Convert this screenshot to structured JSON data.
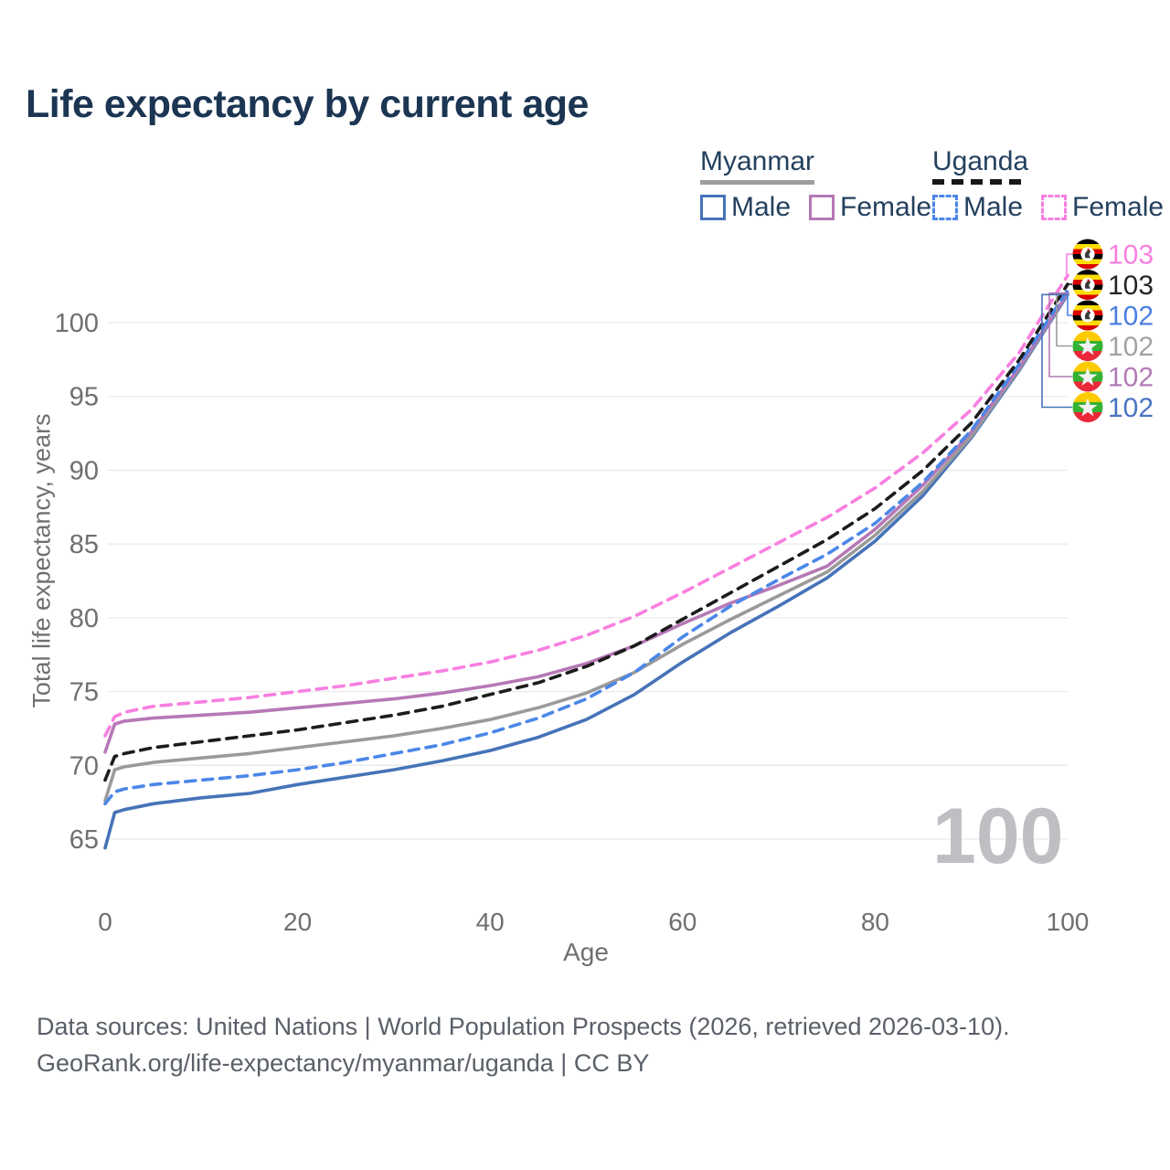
{
  "title": "Life expectancy by current age",
  "legend": {
    "groups": [
      {
        "country": "Myanmar",
        "underline": "solid-gray",
        "items": [
          {
            "label": "Male",
            "color": "#4673b8",
            "dashed": false
          },
          {
            "label": "Female",
            "color": "#b678b6",
            "dashed": false
          }
        ]
      },
      {
        "country": "Uganda",
        "underline": "dashed-black",
        "items": [
          {
            "label": "Male",
            "color": "#4b87e8",
            "dashed": true
          },
          {
            "label": "Female",
            "color": "#f87fe0",
            "dashed": true
          }
        ]
      }
    ]
  },
  "chart_data": {
    "type": "line",
    "title": "Life expectancy by current age",
    "xlabel": "Age",
    "ylabel": "Total life expectancy, years",
    "xlim": [
      0,
      100
    ],
    "ylim": [
      63.5,
      104.5
    ],
    "xticks": [
      0,
      20,
      40,
      60,
      80,
      100
    ],
    "yticks": [
      65,
      70,
      75,
      80,
      85,
      90,
      95,
      100
    ],
    "grid": "horizontal",
    "legend_position": "top-right",
    "hover_age_watermark": "100",
    "x": [
      0,
      1,
      2,
      5,
      10,
      15,
      20,
      25,
      30,
      35,
      40,
      45,
      50,
      55,
      60,
      65,
      70,
      75,
      80,
      85,
      90,
      95,
      100
    ],
    "series": [
      {
        "id": "mm-male",
        "name": "Myanmar Male",
        "country": "Myanmar",
        "sex": "Male",
        "color": "#4673b8",
        "dashed": false,
        "values": [
          64.4,
          66.8,
          67.0,
          67.4,
          67.8,
          68.1,
          68.7,
          69.2,
          69.7,
          70.3,
          71.0,
          71.9,
          73.1,
          74.8,
          77.0,
          79.0,
          80.8,
          82.7,
          85.2,
          88.3,
          92.2,
          96.8,
          101.9
        ]
      },
      {
        "id": "mm-both",
        "name": "Myanmar Both sexes",
        "country": "Myanmar",
        "sex": "Both",
        "color": "#9a9a9a",
        "dashed": false,
        "values": [
          67.6,
          69.7,
          69.9,
          70.2,
          70.5,
          70.8,
          71.2,
          71.6,
          72.0,
          72.5,
          73.1,
          73.9,
          74.9,
          76.3,
          78.2,
          79.9,
          81.5,
          83.1,
          85.6,
          88.6,
          92.3,
          96.9,
          102.0
        ]
      },
      {
        "id": "mm-female",
        "name": "Myanmar Female",
        "country": "Myanmar",
        "sex": "Female",
        "color": "#b678b6",
        "dashed": false,
        "values": [
          70.9,
          72.8,
          73.0,
          73.2,
          73.4,
          73.6,
          73.9,
          74.2,
          74.5,
          74.9,
          75.4,
          76.0,
          76.9,
          78.1,
          79.6,
          81.0,
          82.2,
          83.5,
          86.0,
          89.0,
          92.6,
          97.0,
          102.0
        ]
      },
      {
        "id": "ug-male",
        "name": "Uganda Male",
        "country": "Uganda",
        "sex": "Male",
        "color": "#4b87e8",
        "dashed": true,
        "values": [
          67.4,
          68.2,
          68.4,
          68.7,
          69.0,
          69.3,
          69.7,
          70.2,
          70.8,
          71.4,
          72.2,
          73.2,
          74.5,
          76.3,
          78.7,
          80.8,
          82.6,
          84.3,
          86.4,
          89.2,
          92.7,
          97.2,
          102.2
        ]
      },
      {
        "id": "ug-both",
        "name": "Uganda Both sexes",
        "country": "Uganda",
        "sex": "Both",
        "color": "#1c1c1c",
        "dashed": true,
        "values": [
          69.0,
          70.6,
          70.8,
          71.2,
          71.6,
          72.0,
          72.4,
          72.9,
          73.4,
          74.0,
          74.8,
          75.6,
          76.7,
          78.1,
          79.9,
          81.7,
          83.5,
          85.3,
          87.4,
          90.0,
          93.2,
          97.5,
          102.6
        ]
      },
      {
        "id": "ug-female",
        "name": "Uganda Female",
        "country": "Uganda",
        "sex": "Female",
        "color": "#f87fe0",
        "dashed": true,
        "values": [
          72.0,
          73.3,
          73.6,
          74.0,
          74.3,
          74.6,
          75.0,
          75.4,
          75.9,
          76.4,
          77.0,
          77.8,
          78.8,
          80.1,
          81.7,
          83.4,
          85.1,
          86.8,
          88.8,
          91.2,
          94.1,
          98.0,
          103.2
        ]
      }
    ],
    "end_labels": [
      {
        "value": "103",
        "series": "ug-female",
        "flag": "uganda",
        "text_color": "#f87fe0"
      },
      {
        "value": "103",
        "series": "ug-both",
        "flag": "uganda",
        "text_color": "#252525"
      },
      {
        "value": "102",
        "series": "ug-male",
        "flag": "uganda",
        "text_color": "#4a80e0"
      },
      {
        "value": "102",
        "series": "mm-both",
        "flag": "myanmar",
        "text_color": "#a3a3a3"
      },
      {
        "value": "102",
        "series": "mm-female",
        "flag": "myanmar",
        "text_color": "#b27ab6"
      },
      {
        "value": "102",
        "series": "mm-male",
        "flag": "myanmar",
        "text_color": "#4a74c0"
      }
    ],
    "flags": {
      "uganda": {
        "stripes": [
          "#000000",
          "#FCDC04",
          "#D90000",
          "#000000",
          "#FCDC04",
          "#D90000"
        ],
        "emblem": "crane"
      },
      "myanmar": {
        "stripes": [
          "#FECB00",
          "#34B233",
          "#EA2839"
        ],
        "emblem": "star"
      }
    }
  },
  "footer": {
    "line1": "Data sources: United Nations | World Population Prospects (2026, retrieved 2026-03-10).",
    "line2": "GeoRank.org/life-expectancy/myanmar/uganda | CC BY"
  },
  "colors": {
    "title": "#1b3552",
    "legend_text": "#24405e",
    "axis_text": "#6f6f6f",
    "gridline": "#e9e9eb",
    "watermark": "#bfbfc3"
  }
}
